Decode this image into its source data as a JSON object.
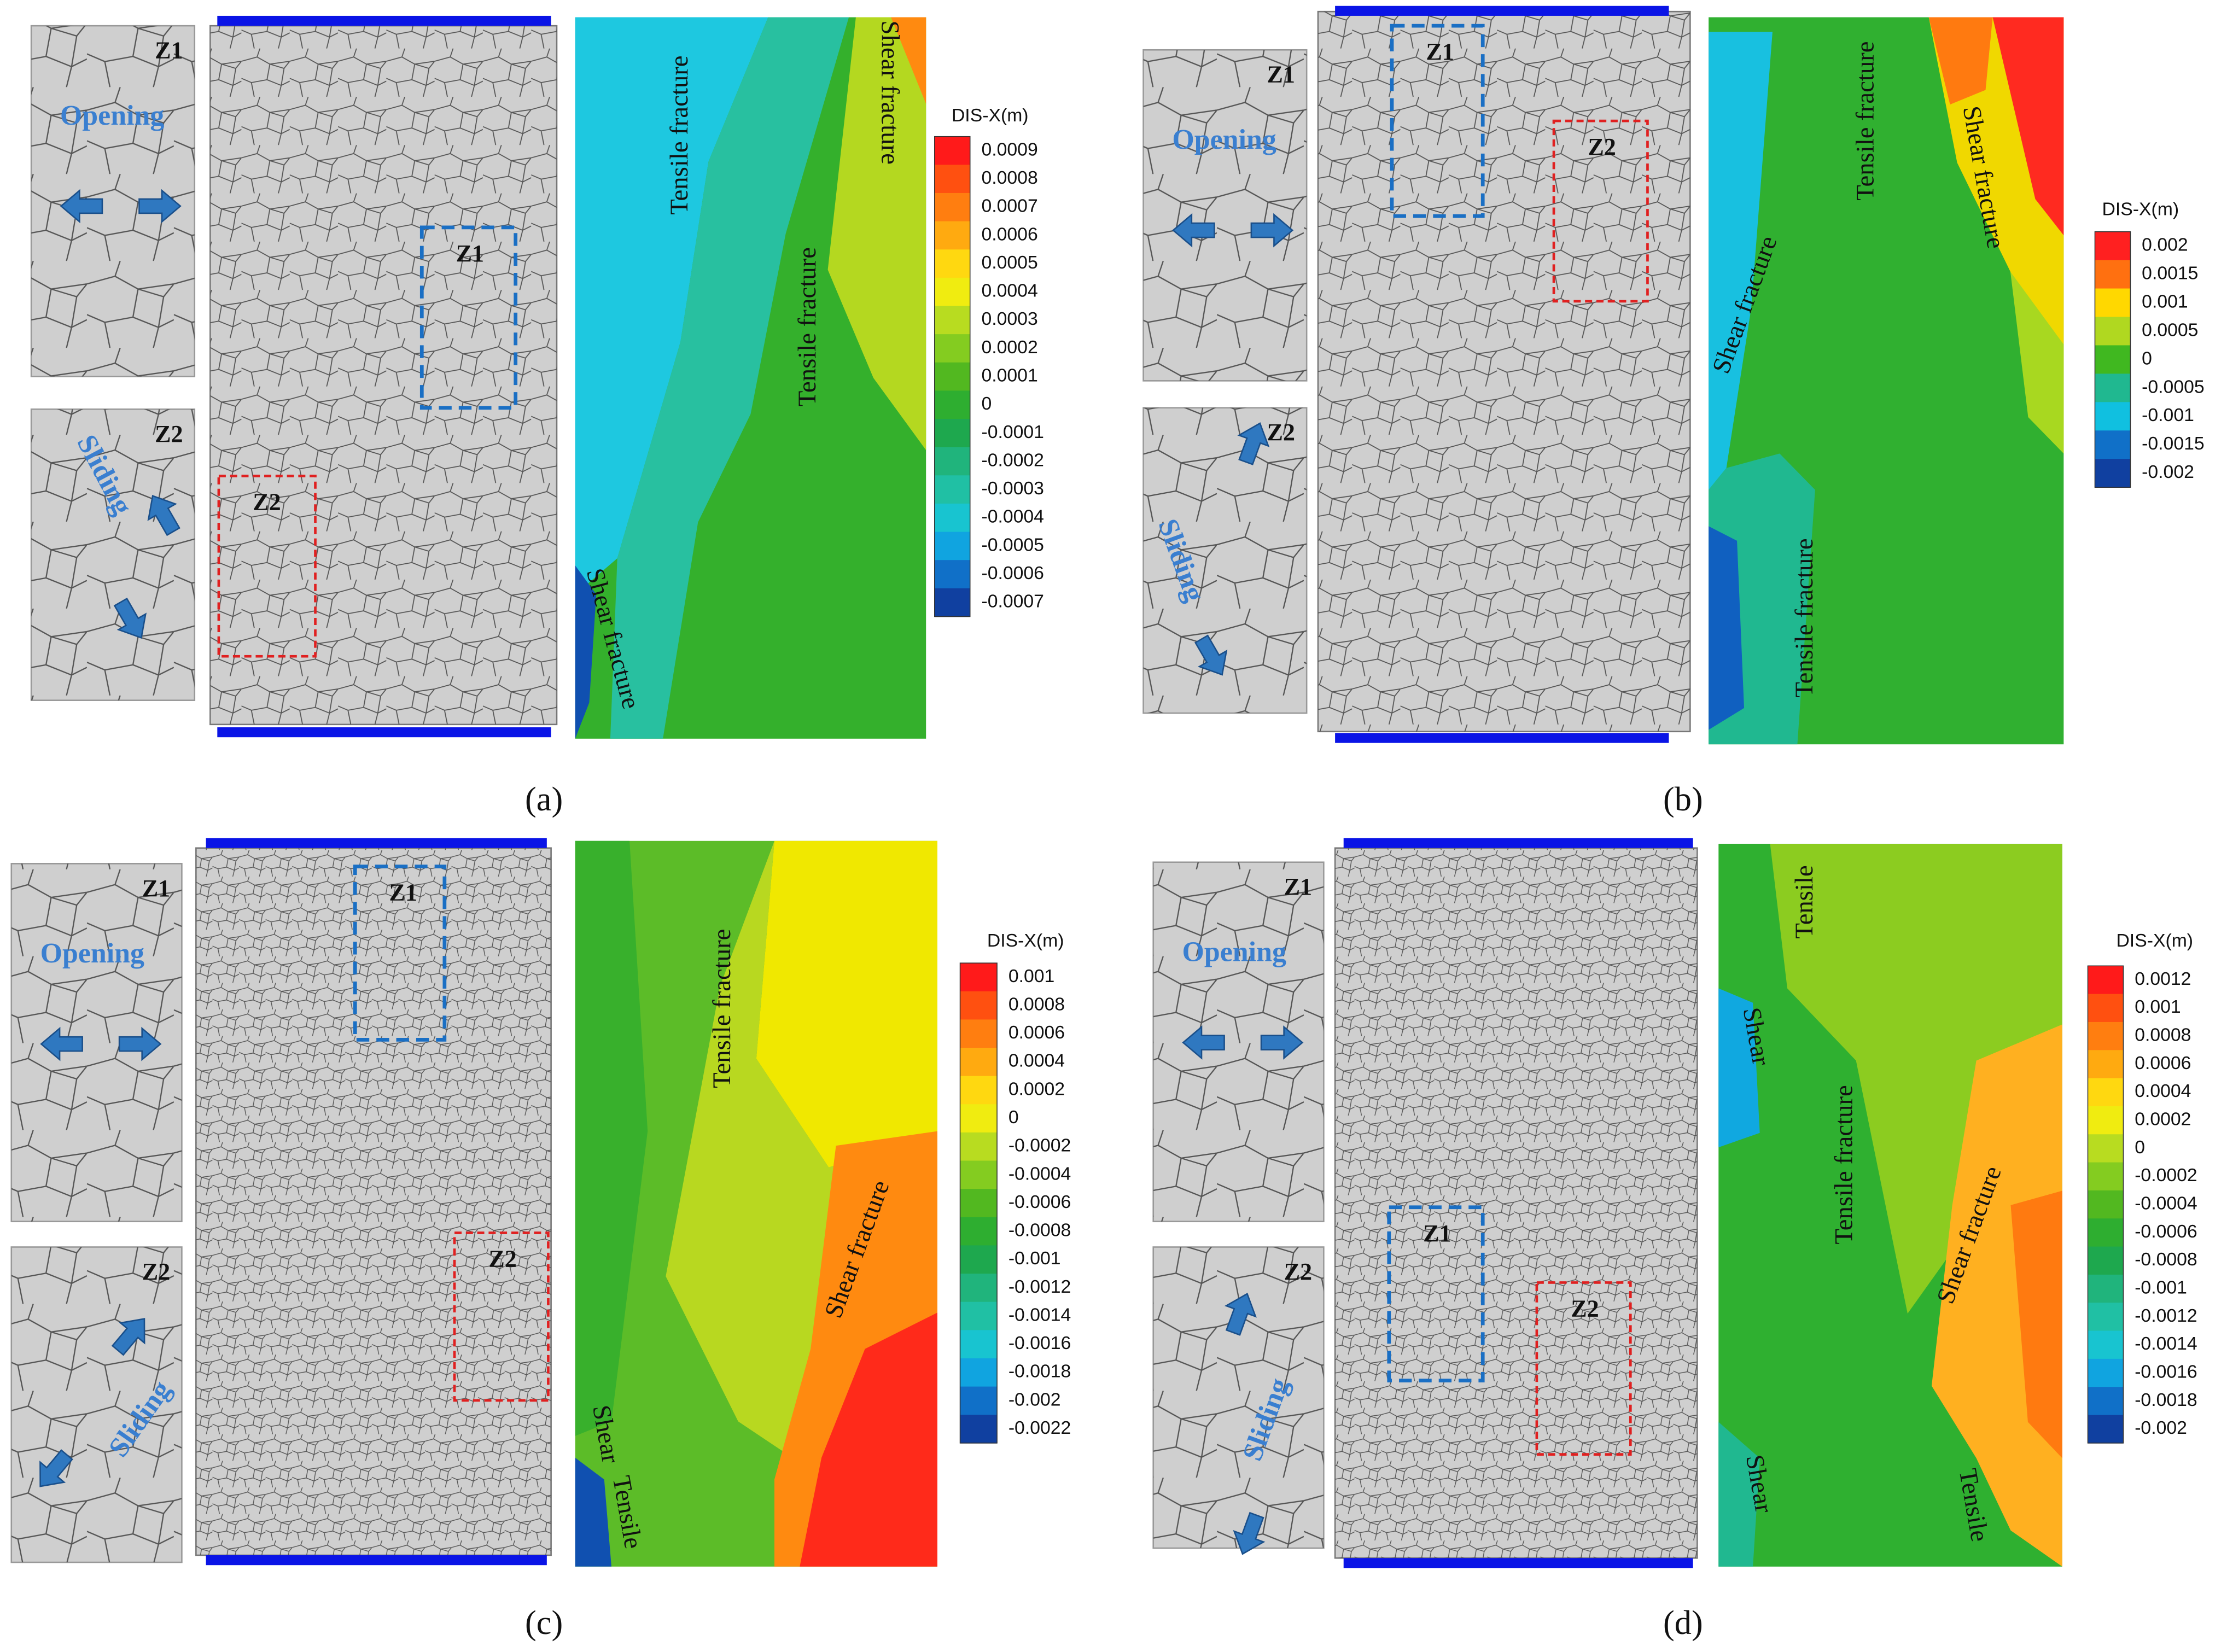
{
  "panels": [
    {
      "label": "(a)",
      "inset_z1": {
        "zone": "Z1",
        "mode": "Opening"
      },
      "inset_z2": {
        "zone": "Z2",
        "mode": "Sliding"
      },
      "boxes": [
        "Z1",
        "Z2"
      ],
      "fractures": [
        "Tensile fracture",
        "Shear fracture",
        "Tensile fracture",
        "Shear fracture"
      ],
      "colorbar": {
        "title": "DIS-X(m)",
        "ticks": [
          0.0009,
          0.0008,
          0.0007,
          0.0006,
          0.0005,
          0.0004,
          0.0003,
          0.0002,
          0.0001,
          0,
          -0.0001,
          -0.0002,
          -0.0003,
          -0.0004,
          -0.0005,
          -0.0006,
          -0.0007
        ],
        "colors": [
          "#ff1a1a",
          "#ff5010",
          "#ff7e10",
          "#ffaa10",
          "#ffd810",
          "#f0ec10",
          "#b8dc20",
          "#84cc20",
          "#52b820",
          "#2eae30",
          "#1ea84e",
          "#20b47c",
          "#20c0a4",
          "#18c4d0",
          "#10a4e0",
          "#1070c8",
          "#1040a0"
        ]
      }
    },
    {
      "label": "(b)",
      "inset_z1": {
        "zone": "Z1",
        "mode": "Opening"
      },
      "inset_z2": {
        "zone": "Z2",
        "mode": "Sliding"
      },
      "boxes": [
        "Z1",
        "Z2"
      ],
      "fractures": [
        "Shear fracture",
        "Tensile fracture",
        "Shear fracture",
        "Tensile fracture"
      ],
      "colorbar": {
        "title": "DIS-X(m)",
        "ticks": [
          0.002,
          0.0015,
          0.001,
          0.0005,
          0,
          -0.0005,
          -0.001,
          -0.0015,
          -0.002
        ],
        "colors": [
          "#ff2020",
          "#ff7010",
          "#ffd800",
          "#b0d820",
          "#40b820",
          "#20b890",
          "#10c0e0",
          "#1070c8",
          "#1040a0"
        ]
      }
    },
    {
      "label": "(c)",
      "inset_z1": {
        "zone": "Z1",
        "mode": "Opening"
      },
      "inset_z2": {
        "zone": "Z2",
        "mode": "Sliding"
      },
      "boxes": [
        "Z1",
        "Z2"
      ],
      "fractures": [
        "Tensile fracture",
        "Shear fracture",
        "Shear",
        "Tensile"
      ],
      "colorbar": {
        "title": "DIS-X(m)",
        "ticks": [
          0.001,
          0.0008,
          0.0006,
          0.0004,
          0.0002,
          0,
          -0.0002,
          -0.0004,
          -0.0006,
          -0.0008,
          -0.001,
          -0.0012,
          -0.0014,
          -0.0016,
          -0.0018,
          -0.002,
          -0.0022
        ],
        "colors": [
          "#ff1a1a",
          "#ff5010",
          "#ff7e10",
          "#ffaa10",
          "#ffd810",
          "#f0ec10",
          "#b8dc20",
          "#84cc20",
          "#52b820",
          "#2eae30",
          "#1ea84e",
          "#20b47c",
          "#20c0a4",
          "#18c4d0",
          "#10a4e0",
          "#1070c8",
          "#1040a0"
        ]
      }
    },
    {
      "label": "(d)",
      "inset_z1": {
        "zone": "Z1",
        "mode": "Opening"
      },
      "inset_z2": {
        "zone": "Z2",
        "mode": "Sliding"
      },
      "boxes": [
        "Z1",
        "Z2"
      ],
      "fractures": [
        "Tensile",
        "Shear",
        "Tensile fracture",
        "Shear fracture",
        "Shear",
        "Tensile"
      ],
      "colorbar": {
        "title": "DIS-X(m)",
        "ticks": [
          0.0012,
          0.001,
          0.0008,
          0.0006,
          0.0004,
          0.0002,
          0,
          -0.0002,
          -0.0004,
          -0.0006,
          -0.0008,
          -0.001,
          -0.0012,
          -0.0014,
          -0.0016,
          -0.0018,
          -0.002
        ],
        "colors": [
          "#ff1a1a",
          "#ff5010",
          "#ff7e10",
          "#ffaa10",
          "#ffd810",
          "#f0ec10",
          "#b8dc20",
          "#84cc20",
          "#52b820",
          "#2eae30",
          "#1ea84e",
          "#20b47c",
          "#20c0a4",
          "#18c4d0",
          "#10a4e0",
          "#1070c8",
          "#1040a0"
        ]
      }
    }
  ]
}
